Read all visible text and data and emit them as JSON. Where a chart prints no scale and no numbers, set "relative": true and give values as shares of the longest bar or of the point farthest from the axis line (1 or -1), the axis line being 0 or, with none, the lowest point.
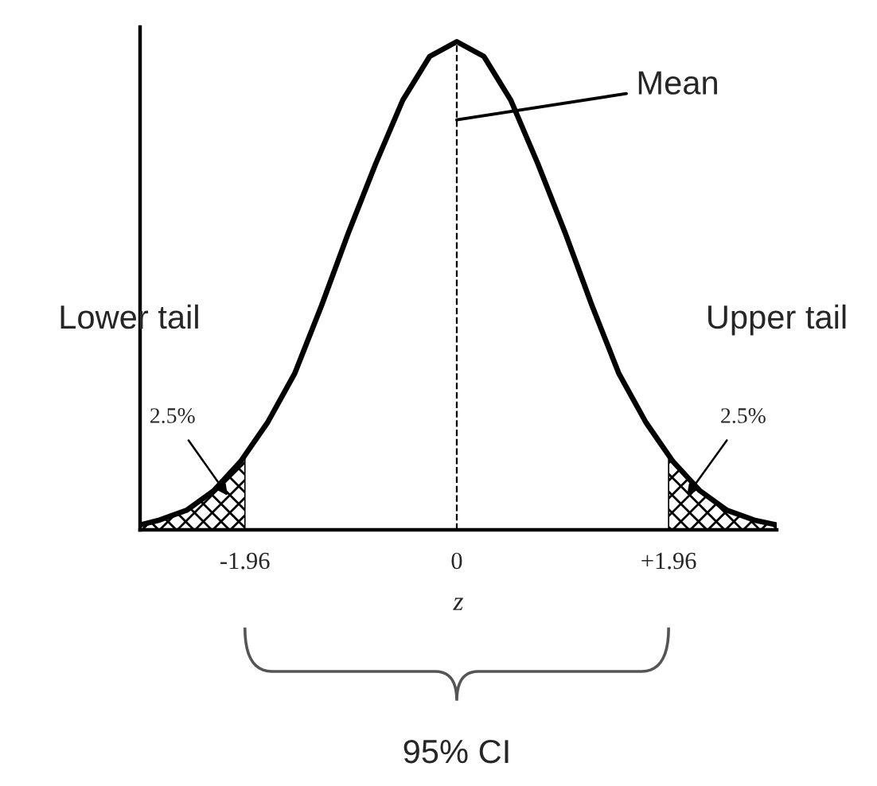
{
  "chart_data": {
    "type": "line",
    "relative": true,
    "xlabel": "z",
    "xlim": [
      -2.93,
      2.96
    ],
    "xticks": [
      {
        "value": -1.96,
        "label": "-1.96"
      },
      0,
      {
        "value": 1.96,
        "label": "+1.96"
      }
    ],
    "grid": false,
    "marker": "none",
    "line_style": "solid",
    "series": [
      {
        "color": "#000000",
        "x": [
          -2.93,
          -2.75,
          -2.5,
          -2.25,
          -2.0,
          -1.75,
          -1.5,
          -1.25,
          -1.0,
          -0.75,
          -0.5,
          -0.25,
          0,
          0.25,
          0.5,
          0.75,
          1.0,
          1.25,
          1.5,
          1.75,
          2.0,
          2.25,
          2.5,
          2.75,
          2.96
        ],
        "values": [
          0.01,
          0.02,
          0.04,
          0.08,
          0.14,
          0.22,
          0.32,
          0.46,
          0.61,
          0.75,
          0.88,
          0.97,
          1.0,
          0.97,
          0.88,
          0.75,
          0.61,
          0.46,
          0.32,
          0.22,
          0.14,
          0.08,
          0.04,
          0.02,
          0.01
        ]
      },
      {
        "type": "area",
        "color": "#000000",
        "x": [
          -2.93,
          -2.75,
          -2.5,
          -2.25,
          -1.96
        ],
        "values": [
          0.01,
          0.02,
          0.04,
          0.08,
          0.15
        ]
      },
      {
        "type": "area",
        "color": "#000000",
        "x": [
          1.96,
          2.25,
          2.5,
          2.75,
          2.96
        ],
        "values": [
          0.15,
          0.08,
          0.04,
          0.02,
          0.01
        ]
      }
    ],
    "ref_lines": [
      {
        "axis": "x",
        "value": 0,
        "line_style": "dashed",
        "color": "#000000"
      }
    ],
    "annotations": [
      {
        "text": "Mean",
        "x": 0,
        "y": 0.84
      },
      "Lower tail",
      "Upper tail",
      "2.5%",
      "2.5%",
      "95% CI"
    ]
  }
}
